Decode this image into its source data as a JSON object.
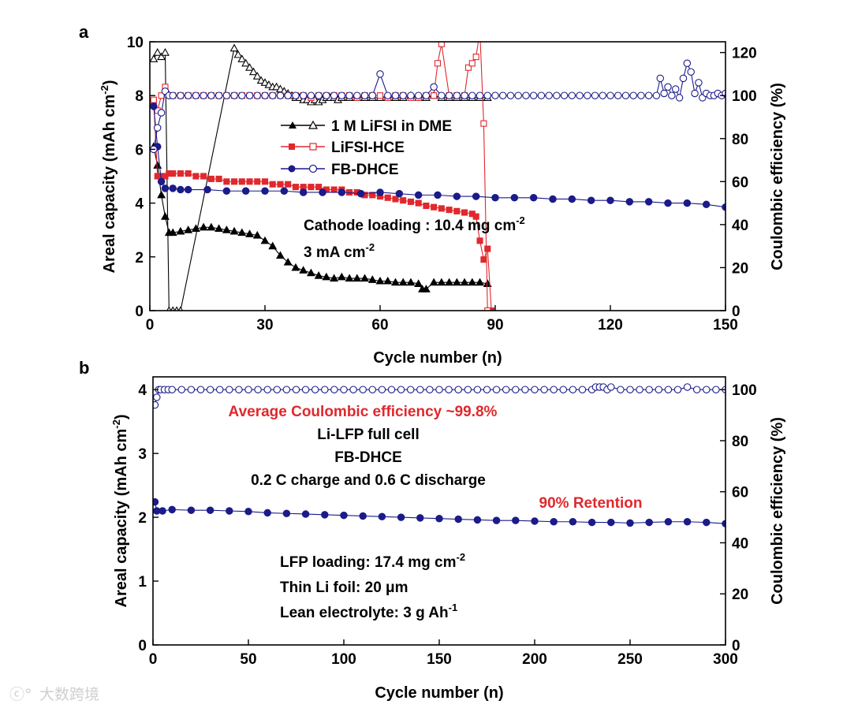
{
  "colors": {
    "black": "#000000",
    "red": "#e0282d",
    "blue": "#1b1b8a",
    "watermark": "#cfcfcf"
  },
  "watermark": "大数跨境",
  "chart_data": [
    {
      "id": "a",
      "type": "scatter",
      "panel_label": "a",
      "xlabel": "Cycle number (n)",
      "ylabel": "Areal capacity (mAh cm",
      "ylabel_sup": "-2",
      "ylabel_tail": ")",
      "y2label": "Coulombic efficiency (%)",
      "xlim": [
        0,
        150
      ],
      "ylim": [
        0,
        10
      ],
      "y2lim": [
        0,
        125
      ],
      "xticks": [
        "0",
        "30",
        "60",
        "90",
        "120",
        "150"
      ],
      "yticks": [
        "0",
        "2",
        "4",
        "6",
        "8",
        "10"
      ],
      "y2ticks": [
        "0",
        "20",
        "40",
        "60",
        "80",
        "100",
        "120"
      ],
      "legend": [
        {
          "label": "1 M LiFSI in DME",
          "color": "#000000",
          "marker": "triangle"
        },
        {
          "label": "LiFSI-HCE",
          "color": "#e0282d",
          "marker": "square"
        },
        {
          "label": "FB-DHCE",
          "color": "#1b1b8a",
          "marker": "circle"
        }
      ],
      "annotations": [
        {
          "text": "Cathode loading : 10.4 mg cm",
          "sup": "-2"
        },
        {
          "text": "3 mA cm",
          "sup": "-2"
        }
      ],
      "series": [
        {
          "name": "1 M LiFSI in DME capacity",
          "color": "#000000",
          "marker": "triangle",
          "filled": true,
          "axis": "left",
          "x": [
            1,
            2,
            3,
            4,
            5,
            6,
            8,
            10,
            12,
            14,
            16,
            18,
            20,
            22,
            24,
            26,
            28,
            30,
            32,
            34,
            36,
            38,
            40,
            42,
            44,
            46,
            48,
            50,
            52,
            54,
            56,
            58,
            60,
            62,
            64,
            66,
            68,
            70,
            71,
            72,
            74,
            76,
            78,
            80,
            82,
            84,
            86,
            88
          ],
          "y": [
            6.1,
            5.4,
            4.3,
            3.5,
            2.9,
            2.9,
            2.95,
            3.0,
            3.05,
            3.1,
            3.1,
            3.05,
            3.0,
            2.95,
            2.9,
            2.85,
            2.8,
            2.6,
            2.4,
            2.05,
            1.8,
            1.6,
            1.5,
            1.4,
            1.3,
            1.25,
            1.2,
            1.25,
            1.2,
            1.2,
            1.2,
            1.15,
            1.1,
            1.1,
            1.05,
            1.05,
            1.05,
            1.0,
            0.8,
            0.8,
            1.05,
            1.05,
            1.05,
            1.05,
            1.05,
            1.05,
            1.05,
            1.0
          ]
        },
        {
          "name": "1 M LiFSI in DME CE",
          "color": "#000000",
          "marker": "triangle",
          "filled": false,
          "axis": "right",
          "x": [
            1,
            2,
            3,
            4,
            5,
            6,
            7,
            8,
            22,
            23,
            24,
            25,
            26,
            27,
            28,
            29,
            30,
            31,
            32,
            33,
            34,
            35,
            36,
            37,
            38,
            39,
            40,
            41,
            42,
            43,
            44,
            45,
            46,
            47,
            48,
            49,
            50,
            52,
            54,
            56,
            58,
            60,
            62,
            64,
            66,
            68,
            70,
            72,
            74,
            76,
            78,
            80,
            82,
            84,
            86,
            88
          ],
          "y": [
            117,
            120,
            118,
            120,
            0,
            0,
            0,
            0,
            122,
            119,
            117,
            115,
            113,
            111,
            109,
            107,
            106,
            105,
            104,
            104,
            103,
            102,
            101,
            100,
            99,
            99,
            98,
            98,
            97,
            98,
            97,
            98,
            99,
            99,
            99,
            98,
            99,
            99,
            99,
            99,
            99,
            99,
            99,
            99,
            99,
            100,
            99,
            99,
            100,
            99,
            99,
            99,
            99,
            99,
            99,
            99
          ]
        },
        {
          "name": "LiFSI-HCE capacity",
          "color": "#e0282d",
          "marker": "square",
          "filled": true,
          "axis": "left",
          "x": [
            1,
            2,
            3,
            4,
            5,
            6,
            8,
            10,
            12,
            14,
            16,
            18,
            20,
            22,
            24,
            26,
            28,
            30,
            32,
            34,
            36,
            38,
            40,
            42,
            44,
            46,
            48,
            50,
            52,
            54,
            56,
            58,
            60,
            62,
            64,
            66,
            68,
            70,
            72,
            74,
            76,
            78,
            80,
            82,
            84,
            85,
            86,
            87,
            88,
            89
          ],
          "y": [
            7.8,
            5.0,
            5.0,
            5.0,
            5.1,
            5.1,
            5.1,
            5.1,
            5.0,
            5.0,
            4.9,
            4.9,
            4.8,
            4.8,
            4.8,
            4.8,
            4.8,
            4.8,
            4.7,
            4.7,
            4.7,
            4.6,
            4.6,
            4.6,
            4.6,
            4.5,
            4.5,
            4.5,
            4.4,
            4.4,
            4.3,
            4.3,
            4.25,
            4.2,
            4.15,
            4.1,
            4.05,
            4.0,
            3.9,
            3.85,
            3.8,
            3.75,
            3.7,
            3.65,
            3.6,
            3.5,
            2.6,
            1.9,
            2.3,
            0
          ]
        },
        {
          "name": "LiFSI-HCE CE",
          "color": "#e0282d",
          "marker": "square",
          "filled": false,
          "axis": "right",
          "x": [
            1,
            2,
            3,
            4,
            6,
            8,
            10,
            12,
            14,
            16,
            18,
            20,
            22,
            24,
            26,
            28,
            30,
            32,
            34,
            36,
            38,
            40,
            42,
            44,
            46,
            48,
            50,
            52,
            54,
            56,
            58,
            60,
            62,
            64,
            66,
            68,
            70,
            72,
            74,
            75,
            76,
            78,
            80,
            82,
            83,
            84,
            85,
            86,
            87,
            88
          ],
          "y": [
            98,
            93,
            100,
            104,
            100,
            100,
            100,
            100,
            100,
            100,
            100,
            100,
            100,
            100,
            100,
            100,
            100,
            100,
            100,
            100,
            100,
            100,
            99,
            100,
            100,
            100,
            100,
            100,
            99,
            100,
            100,
            100,
            99,
            100,
            100,
            99,
            99,
            100,
            100,
            115,
            124,
            100,
            100,
            100,
            113,
            115,
            118,
            130,
            87,
            0
          ]
        },
        {
          "name": "FB-DHCE capacity",
          "color": "#1b1b8a",
          "marker": "circle",
          "filled": true,
          "axis": "left",
          "x": [
            1,
            2,
            3,
            4,
            6,
            8,
            10,
            15,
            20,
            25,
            30,
            35,
            40,
            45,
            50,
            55,
            60,
            65,
            70,
            75,
            80,
            85,
            90,
            95,
            100,
            105,
            110,
            115,
            120,
            125,
            130,
            135,
            140,
            145,
            150
          ],
          "y": [
            7.6,
            6.1,
            4.8,
            4.55,
            4.55,
            4.5,
            4.5,
            4.5,
            4.45,
            4.45,
            4.45,
            4.45,
            4.4,
            4.4,
            4.4,
            4.35,
            4.4,
            4.35,
            4.3,
            4.3,
            4.25,
            4.25,
            4.2,
            4.2,
            4.2,
            4.15,
            4.15,
            4.1,
            4.1,
            4.05,
            4.05,
            4.0,
            4.0,
            3.95,
            3.85
          ]
        },
        {
          "name": "FB-DHCE CE",
          "color": "#1b1b8a",
          "marker": "circle",
          "filled": false,
          "axis": "right",
          "x": [
            1,
            2,
            3,
            4,
            5,
            6,
            8,
            10,
            12,
            14,
            16,
            18,
            20,
            22,
            24,
            26,
            28,
            30,
            32,
            34,
            36,
            38,
            40,
            42,
            44,
            46,
            48,
            50,
            52,
            54,
            56,
            58,
            60,
            62,
            64,
            66,
            68,
            70,
            72,
            74,
            76,
            78,
            80,
            82,
            84,
            86,
            88,
            90,
            92,
            94,
            96,
            98,
            100,
            102,
            104,
            106,
            108,
            110,
            112,
            114,
            116,
            118,
            120,
            122,
            124,
            126,
            128,
            130,
            132,
            133,
            134,
            135,
            136,
            137,
            138,
            139,
            140,
            141,
            142,
            143,
            144,
            145,
            146,
            147,
            148,
            149,
            150
          ],
          "y": [
            75,
            85,
            92,
            102,
            100,
            100,
            100,
            100,
            100,
            100,
            100,
            100,
            100,
            100,
            100,
            100,
            100,
            100,
            100,
            100,
            100,
            100,
            100,
            100,
            100,
            100,
            100,
            100,
            100,
            100,
            100,
            100,
            110,
            100,
            100,
            100,
            100,
            100,
            100,
            104,
            100,
            100,
            100,
            100,
            100,
            100,
            100,
            100,
            100,
            100,
            100,
            100,
            100,
            100,
            100,
            100,
            100,
            100,
            100,
            100,
            100,
            100,
            100,
            100,
            100,
            100,
            100,
            100,
            100,
            108,
            101,
            104,
            100,
            103,
            99,
            108,
            115,
            111,
            101,
            106,
            99,
            101,
            100,
            100,
            101,
            100,
            101
          ]
        }
      ]
    },
    {
      "id": "b",
      "type": "scatter",
      "panel_label": "b",
      "xlabel": "Cycle number (n)",
      "ylabel": "Areal capacity (mAh cm",
      "ylabel_sup": "-2",
      "ylabel_tail": ")",
      "y2label": "Coulombic efficiency (%)",
      "xlim": [
        0,
        300
      ],
      "ylim": [
        0,
        4.2
      ],
      "y2lim": [
        0,
        105
      ],
      "xticks": [
        "0",
        "50",
        "100",
        "150",
        "200",
        "250",
        "300"
      ],
      "yticks": [
        "0",
        "1",
        "2",
        "3",
        "4"
      ],
      "y2ticks": [
        "0",
        "20",
        "40",
        "60",
        "80",
        "100"
      ],
      "annotations_red": [
        {
          "text": "Average Coulombic efficiency ~99.8%"
        },
        {
          "text": "90% Retention"
        }
      ],
      "annotations": [
        {
          "text": "Li-LFP full cell"
        },
        {
          "text": "FB-DHCE"
        },
        {
          "text": "0.2 C charge and 0.6 C discharge"
        },
        {
          "text": "LFP loading: 17.4 mg cm",
          "sup": "-2"
        },
        {
          "text": "Thin Li foil: 20 μm"
        },
        {
          "text": "Lean electrolyte: 3 g Ah",
          "sup": "-1"
        }
      ],
      "series": [
        {
          "name": "FB-DHCE capacity",
          "color": "#1b1b8a",
          "marker": "circle",
          "filled": true,
          "axis": "left",
          "x": [
            1,
            2,
            5,
            10,
            20,
            30,
            40,
            50,
            60,
            70,
            80,
            90,
            100,
            110,
            120,
            130,
            140,
            150,
            160,
            170,
            180,
            190,
            200,
            210,
            220,
            230,
            240,
            250,
            260,
            270,
            280,
            290,
            300
          ],
          "y": [
            2.24,
            2.1,
            2.1,
            2.12,
            2.11,
            2.11,
            2.1,
            2.09,
            2.07,
            2.06,
            2.05,
            2.04,
            2.03,
            2.02,
            2.01,
            2.0,
            1.99,
            1.98,
            1.97,
            1.96,
            1.95,
            1.95,
            1.94,
            1.93,
            1.93,
            1.92,
            1.92,
            1.91,
            1.92,
            1.93,
            1.93,
            1.92,
            1.9
          ]
        },
        {
          "name": "FB-DHCE CE",
          "color": "#1b1b8a",
          "marker": "circle",
          "filled": false,
          "axis": "right",
          "x": [
            1,
            2,
            3,
            4,
            6,
            8,
            10,
            15,
            20,
            25,
            30,
            35,
            40,
            45,
            50,
            55,
            60,
            65,
            70,
            75,
            80,
            85,
            90,
            95,
            100,
            105,
            110,
            115,
            120,
            125,
            130,
            135,
            140,
            145,
            150,
            155,
            160,
            165,
            170,
            175,
            180,
            185,
            190,
            195,
            200,
            205,
            210,
            215,
            220,
            225,
            230,
            232,
            234,
            236,
            238,
            240,
            245,
            250,
            255,
            260,
            265,
            270,
            275,
            280,
            285,
            290,
            295,
            300
          ],
          "y": [
            94,
            97,
            100,
            100,
            100,
            100,
            100,
            100,
            100,
            100,
            100,
            100,
            100,
            100,
            100,
            100,
            100,
            100,
            100,
            100,
            100,
            100,
            100,
            100,
            100,
            100,
            100,
            100,
            100,
            100,
            100,
            100,
            100,
            100,
            100,
            100,
            100,
            100,
            100,
            100,
            100,
            100,
            100,
            100,
            100,
            100,
            100,
            100,
            100,
            100,
            100,
            101,
            101,
            101,
            100,
            101,
            100,
            100,
            100,
            100,
            100,
            100,
            100,
            101,
            100,
            100,
            100,
            100
          ]
        }
      ]
    }
  ]
}
